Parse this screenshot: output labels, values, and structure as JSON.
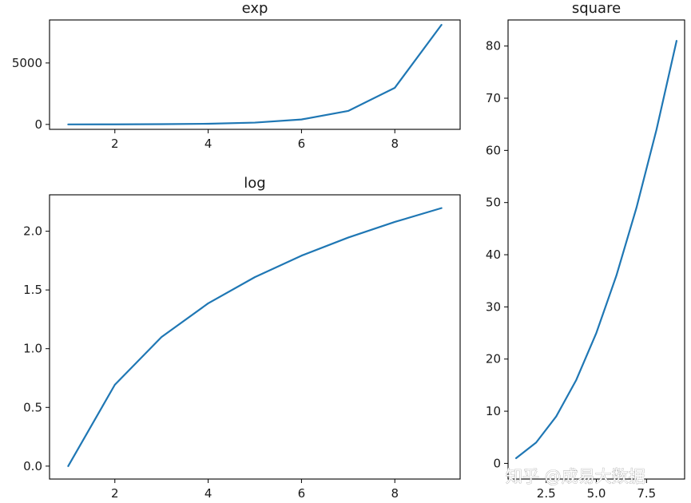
{
  "chart_data": [
    {
      "type": "line",
      "title": "exp",
      "x": [
        1,
        2,
        3,
        4,
        5,
        6,
        7,
        8,
        9
      ],
      "series": [
        {
          "values": [
            2.718,
            7.389,
            20.086,
            54.598,
            148.41,
            403.43,
            1096.6,
            2981.0,
            8103.1
          ]
        }
      ],
      "xticks": [
        2,
        4,
        6,
        8
      ],
      "yticks": [
        0,
        5000
      ],
      "xlim": [
        0.6,
        9.4
      ],
      "ylim": [
        -400,
        8500
      ]
    },
    {
      "type": "line",
      "title": "square",
      "x": [
        1,
        2,
        3,
        4,
        5,
        6,
        7,
        8,
        9
      ],
      "series": [
        {
          "values": [
            1,
            4,
            9,
            16,
            25,
            36,
            49,
            64,
            81
          ]
        }
      ],
      "xticks": [
        2.5,
        5.0,
        7.5
      ],
      "xtick_labels": [
        "2.5",
        "5.0",
        "7.5"
      ],
      "yticks": [
        0,
        10,
        20,
        30,
        40,
        50,
        60,
        70,
        80
      ],
      "xlim": [
        0.6,
        9.4
      ],
      "ylim": [
        -3,
        85
      ]
    },
    {
      "type": "line",
      "title": "log",
      "x": [
        1,
        2,
        3,
        4,
        5,
        6,
        7,
        8,
        9
      ],
      "series": [
        {
          "values": [
            0.0,
            0.693,
            1.099,
            1.386,
            1.609,
            1.792,
            1.946,
            2.079,
            2.197
          ]
        }
      ],
      "xticks": [
        2,
        4,
        6,
        8
      ],
      "yticks": [
        0.0,
        0.5,
        1.0,
        1.5,
        2.0
      ],
      "ytick_labels": [
        "0.0",
        "0.5",
        "1.0",
        "1.5",
        "2.0"
      ],
      "xlim": [
        0.6,
        9.4
      ],
      "ylim": [
        -0.11,
        2.31
      ]
    }
  ],
  "colors": {
    "series": "#1f77b4"
  },
  "watermark": "知乎 @成易大数据"
}
